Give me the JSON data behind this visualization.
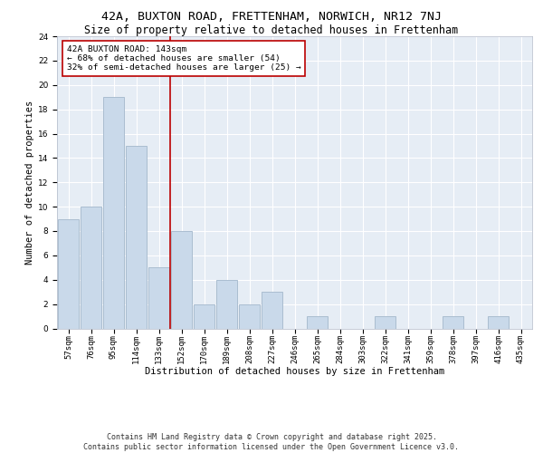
{
  "title1": "42A, BUXTON ROAD, FRETTENHAM, NORWICH, NR12 7NJ",
  "title2": "Size of property relative to detached houses in Frettenham",
  "xlabel": "Distribution of detached houses by size in Frettenham",
  "ylabel": "Number of detached properties",
  "categories": [
    "57sqm",
    "76sqm",
    "95sqm",
    "114sqm",
    "133sqm",
    "152sqm",
    "170sqm",
    "189sqm",
    "208sqm",
    "227sqm",
    "246sqm",
    "265sqm",
    "284sqm",
    "303sqm",
    "322sqm",
    "341sqm",
    "359sqm",
    "378sqm",
    "397sqm",
    "416sqm",
    "435sqm"
  ],
  "values": [
    9,
    10,
    19,
    15,
    5,
    8,
    2,
    4,
    2,
    3,
    0,
    1,
    0,
    0,
    1,
    0,
    0,
    1,
    0,
    1,
    0
  ],
  "bar_color": "#c9d9ea",
  "bar_edge_color": "#aabdd0",
  "vline_x": 4.5,
  "vline_color": "#bb0000",
  "annotation_text": "42A BUXTON ROAD: 143sqm\n← 68% of detached houses are smaller (54)\n32% of semi-detached houses are larger (25) →",
  "annotation_box_color": "#ffffff",
  "annotation_box_edge": "#bb0000",
  "ylim": [
    0,
    24
  ],
  "yticks": [
    0,
    2,
    4,
    6,
    8,
    10,
    12,
    14,
    16,
    18,
    20,
    22,
    24
  ],
  "background_color": "#e6edf5",
  "footer_text": "Contains HM Land Registry data © Crown copyright and database right 2025.\nContains public sector information licensed under the Open Government Licence v3.0.",
  "title_fontsize": 9.5,
  "subtitle_fontsize": 8.5,
  "axis_label_fontsize": 7.5,
  "tick_fontsize": 6.5,
  "annotation_fontsize": 6.8,
  "footer_fontsize": 6.0
}
